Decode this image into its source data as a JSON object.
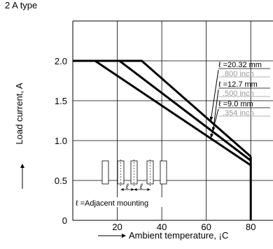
{
  "chart_data": {
    "type": "line",
    "title": "2 A type",
    "xlabel": "Ambient temperature, ¡C",
    "ylabel": "Load current, A",
    "xlim": [
      0,
      90
    ],
    "ylim": [
      0,
      2.5
    ],
    "x_ticks": [
      20,
      40,
      60,
      80
    ],
    "y_ticks": [
      0,
      0.5,
      1.0,
      1.5,
      2.0
    ],
    "x_tick_labels": [
      "20",
      "40",
      "60",
      "80"
    ],
    "y_tick_labels": [
      "0",
      "0.5",
      "1.0",
      "1.5",
      "2.0"
    ],
    "grid": true,
    "series": [
      {
        "name": "ℓ =20.32 mm",
        "x": [
          0,
          31,
          80
        ],
        "y": [
          2.0,
          2.0,
          0.8
        ]
      },
      {
        "name": "ℓ =12.7 mm",
        "x": [
          0,
          21,
          80
        ],
        "y": [
          2.0,
          2.0,
          0.75
        ]
      },
      {
        "name": "ℓ =9.0 mm",
        "x": [
          0,
          10,
          80
        ],
        "y": [
          2.0,
          2.0,
          0.69
        ]
      }
    ],
    "series_subtitles": [
      ".800 inch",
      ".500 inch",
      ".354 inch"
    ],
    "annotations": {
      "mounting_label": "ℓ =Adjacent mounting",
      "spacing_symbol": "ℓ"
    },
    "limit_line": {
      "x": 80,
      "y_from": 0,
      "y_to": 0.8
    }
  }
}
